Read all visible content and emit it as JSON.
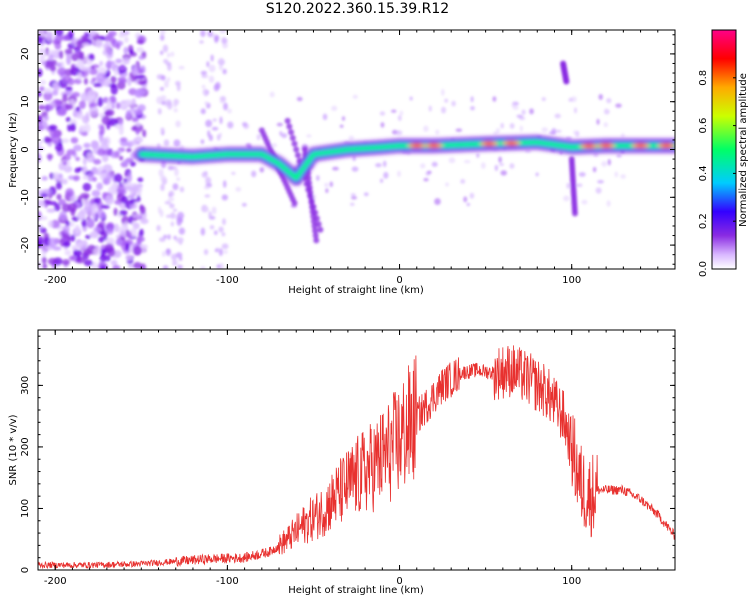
{
  "page": {
    "title": "S120.2022.360.15.39.R12"
  },
  "chart_data": [
    {
      "type": "heatmap",
      "title": "S120.2022.360.15.39.R12",
      "xlabel": "Height of straight line (km)",
      "ylabel": "Frequency (Hz)",
      "xlim": [
        -210,
        160
      ],
      "ylim": [
        -25,
        25
      ],
      "xticks": [
        -200,
        -100,
        0,
        100
      ],
      "yticks": [
        -20,
        -10,
        0,
        10,
        20
      ],
      "colorbar": {
        "label": "Normalized spectral amplitude",
        "range": [
          0,
          1
        ],
        "ticks": [
          "0.0",
          "0.2",
          "0.4",
          "0.6",
          "0.8"
        ],
        "colormap": [
          "#ffffff",
          "#d9b8ff",
          "#8a2be2",
          "#3300ff",
          "#00ccff",
          "#00ff66",
          "#ccff00",
          "#ffaa00",
          "#ff0000",
          "#ff0088"
        ]
      },
      "ridge": {
        "description_points": [
          [
            -150,
            -1
          ],
          [
            -120,
            -1.5
          ],
          [
            -100,
            -1
          ],
          [
            -80,
            -1
          ],
          [
            -70,
            -3
          ],
          [
            -60,
            -6
          ],
          [
            -50,
            -1
          ],
          [
            -30,
            0
          ],
          [
            -10,
            0.5
          ],
          [
            0,
            0.8
          ],
          [
            20,
            0.8
          ],
          [
            50,
            1.2
          ],
          [
            80,
            1.5
          ],
          [
            100,
            0.5
          ],
          [
            120,
            0.8
          ],
          [
            160,
            0.8
          ]
        ]
      }
    },
    {
      "type": "line",
      "xlabel": "Height of straight line (km)",
      "ylabel": "SNR (10 * v/v)",
      "xlim": [
        -210,
        160
      ],
      "ylim": [
        0,
        390
      ],
      "xticks": [
        -200,
        -100,
        0,
        100
      ],
      "yticks": [
        0,
        100,
        200,
        300
      ],
      "line_color": "#e8312f",
      "x": [
        -210,
        -180,
        -150,
        -130,
        -110,
        -90,
        -75,
        -65,
        -55,
        -45,
        -35,
        -25,
        -15,
        -5,
        5,
        15,
        25,
        35,
        45,
        55,
        65,
        75,
        85,
        95,
        100,
        105,
        110,
        115,
        120,
        130,
        140,
        150,
        160
      ],
      "values": [
        8,
        8,
        10,
        14,
        18,
        20,
        30,
        50,
        75,
        95,
        125,
        150,
        170,
        195,
        230,
        265,
        300,
        320,
        325,
        320,
        325,
        310,
        290,
        250,
        200,
        140,
        120,
        130,
        130,
        130,
        115,
        90,
        55
      ]
    }
  ]
}
